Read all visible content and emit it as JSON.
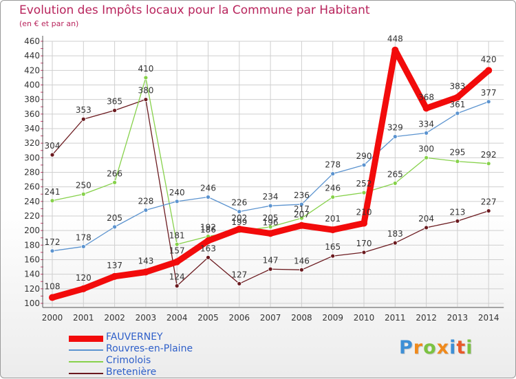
{
  "header": {
    "title": "Evolution des Impôts locaux pour la Commune par Habitant",
    "subtitle": "(en € et par an)"
  },
  "logo": {
    "letters": [
      "P",
      "r",
      "o",
      "x",
      "i",
      "t",
      "i"
    ],
    "colors": [
      "#3d8fd6",
      "#f08a1c",
      "#7cc242",
      "#f08a1c",
      "#3d8fd6",
      "#e85a2a",
      "#7cc242"
    ]
  },
  "chart_data": {
    "type": "line",
    "title": "Evolution des Impôts locaux pour la Commune par Habitant",
    "subtitle": "(en € et par an)",
    "xlabel": "",
    "ylabel": "",
    "categories": [
      "2000",
      "2001",
      "2002",
      "2003",
      "2004",
      "2005",
      "2006",
      "2007",
      "2008",
      "2009",
      "2010",
      "2011",
      "2012",
      "2013",
      "2014"
    ],
    "ylim": [
      100,
      460
    ],
    "yticks": [
      100,
      120,
      140,
      160,
      180,
      200,
      220,
      240,
      260,
      280,
      300,
      320,
      340,
      360,
      380,
      400,
      420,
      440,
      460
    ],
    "grid": true,
    "legend_position": "bottom-left",
    "series": [
      {
        "name": "Bretenière",
        "color": "#6b1a1f",
        "values": [
          304,
          353,
          365,
          380,
          124,
          163,
          127,
          147,
          146,
          165,
          170,
          183,
          204,
          213,
          227
        ]
      },
      {
        "name": "Crimolois",
        "color": "#86d14a",
        "values": [
          241,
          250,
          266,
          410,
          181,
          192,
          199,
          205,
          217,
          246,
          252,
          265,
          300,
          295,
          292
        ]
      },
      {
        "name": "Rouvres-en-Plaine",
        "color": "#5b93cf",
        "values": [
          172,
          178,
          205,
          228,
          240,
          246,
          226,
          234,
          236,
          278,
          290,
          329,
          334,
          361,
          377
        ]
      },
      {
        "name": "FAUVERNEY",
        "color": "#f20b0b",
        "values": [
          108,
          120,
          137,
          143,
          157,
          186,
          202,
          196,
          207,
          201,
          210,
          448,
          368,
          383,
          420
        ]
      }
    ]
  }
}
